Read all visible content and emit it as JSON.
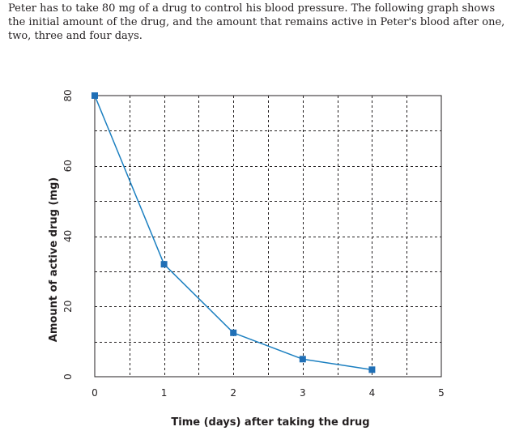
{
  "intro": "Peter has to take 80 mg of a drug to control his blood pressure. The following graph shows the initial amount of the drug, and the amount that remains active in Peter's blood after one, two, three and four days.",
  "colors": {
    "line": "#1b7fc0",
    "marker": "#1f6fb6",
    "grid": "#231f20",
    "text": "#231f20"
  },
  "chart_data": {
    "type": "line",
    "title": "",
    "xlabel": "Time (days) after taking the drug",
    "ylabel": "Amount of active drug (mg)",
    "xlim": [
      0,
      5
    ],
    "ylim": [
      0,
      80
    ],
    "xticks": [
      0,
      1,
      2,
      3,
      4,
      5
    ],
    "yticks": [
      0,
      20,
      40,
      60,
      80
    ],
    "grid": true,
    "grid_style": "dashed",
    "legend": "none",
    "series": [
      {
        "x": [
          0,
          1,
          2,
          3,
          4
        ],
        "y": [
          80,
          32,
          12.5,
          5,
          2
        ],
        "marker": "square"
      }
    ]
  }
}
